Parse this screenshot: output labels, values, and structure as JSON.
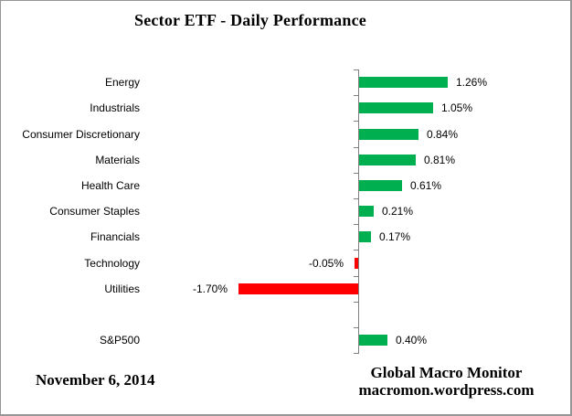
{
  "title": "Sector ETF - Daily Performance",
  "footer": {
    "date": "November 6, 2014",
    "source_line1": "Global Macro Monitor",
    "source_line2": "macromon.wordpress.com"
  },
  "colors": {
    "positive_bar": "#00B050",
    "negative_bar": "#FF0000",
    "axis": "#808080",
    "text": "#000000",
    "frame_border": "#969696"
  },
  "chart_data": {
    "type": "bar",
    "orientation": "horizontal",
    "title": "Sector ETF - Daily Performance",
    "unit": "%",
    "categories": [
      "Energy",
      "Industrials",
      "Consumer Discretionary",
      "Materials",
      "Health Care",
      "Consumer Staples",
      "Financials",
      "Technology",
      "Utilities",
      "S&P500"
    ],
    "values": [
      1.26,
      1.05,
      0.84,
      0.81,
      0.61,
      0.21,
      0.17,
      -0.05,
      -1.7,
      0.4
    ],
    "value_labels": [
      "1.26%",
      "1.05%",
      "0.84%",
      "0.81%",
      "0.61%",
      "0.21%",
      "0.17%",
      "-0.05%",
      "-1.70%",
      "0.40%"
    ],
    "xlim": [
      -1.8,
      1.6
    ],
    "grid": false,
    "legend": false,
    "value_label_position": "outside-end",
    "separated_last_row": true,
    "positive_color": "#00B050",
    "negative_color": "#FF0000"
  }
}
